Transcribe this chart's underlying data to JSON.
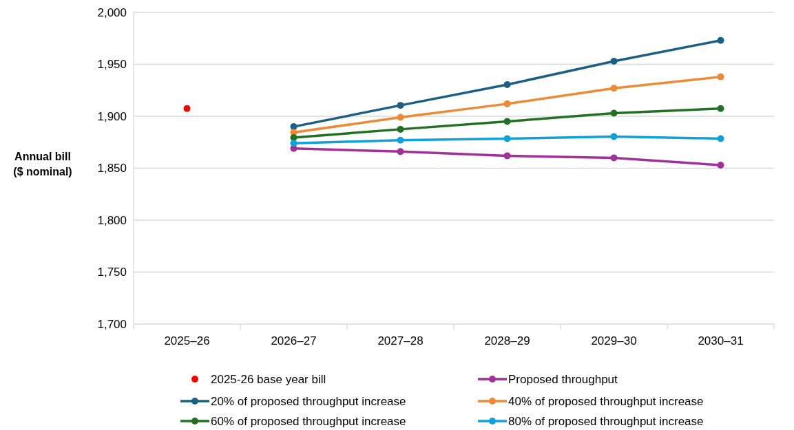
{
  "chart_data": {
    "type": "line",
    "ylabel": "Annual bill ($ nominal)",
    "categories": [
      "2025–26",
      "2026–27",
      "2027–28",
      "2028–29",
      "2029–30",
      "2030–31"
    ],
    "ylim": [
      1700,
      2000
    ],
    "yticks": [
      {
        "value": 1700,
        "label": "1,700"
      },
      {
        "value": 1750,
        "label": "1,750"
      },
      {
        "value": 1800,
        "label": "1,800"
      },
      {
        "value": 1850,
        "label": "1,850"
      },
      {
        "value": 1900,
        "label": "1,900"
      },
      {
        "value": 1950,
        "label": "1,950"
      },
      {
        "value": 2000,
        "label": "2,000"
      }
    ],
    "grid": "y",
    "legend": "bottom",
    "marker": "circle",
    "line_style": "solid",
    "series": [
      {
        "name": "2025-26 base year bill",
        "type": "scatter",
        "color": "#ff0000",
        "x": [
          "2025–26"
        ],
        "values": [
          1907.5
        ]
      },
      {
        "name": "Proposed throughput",
        "color": "#a0309a",
        "values": [
          null,
          1869,
          1866,
          1862,
          1860,
          1853
        ]
      },
      {
        "name": "20% of proposed throughput increase",
        "color": "#1b5f84",
        "values": [
          null,
          1890,
          1910.5,
          1930.5,
          1953,
          1973
        ]
      },
      {
        "name": "40% of proposed throughput increase",
        "color": "#ec8a35",
        "values": [
          null,
          1884.5,
          1899,
          1912,
          1927,
          1938
        ]
      },
      {
        "name": "60% of proposed throughput increase",
        "color": "#217024",
        "values": [
          null,
          1879.5,
          1887.5,
          1895,
          1903,
          1907.5
        ]
      },
      {
        "name": "80% of proposed throughput increase",
        "color": "#12a0d8",
        "values": [
          null,
          1874,
          1877,
          1878.5,
          1880.5,
          1878.5
        ]
      }
    ]
  }
}
